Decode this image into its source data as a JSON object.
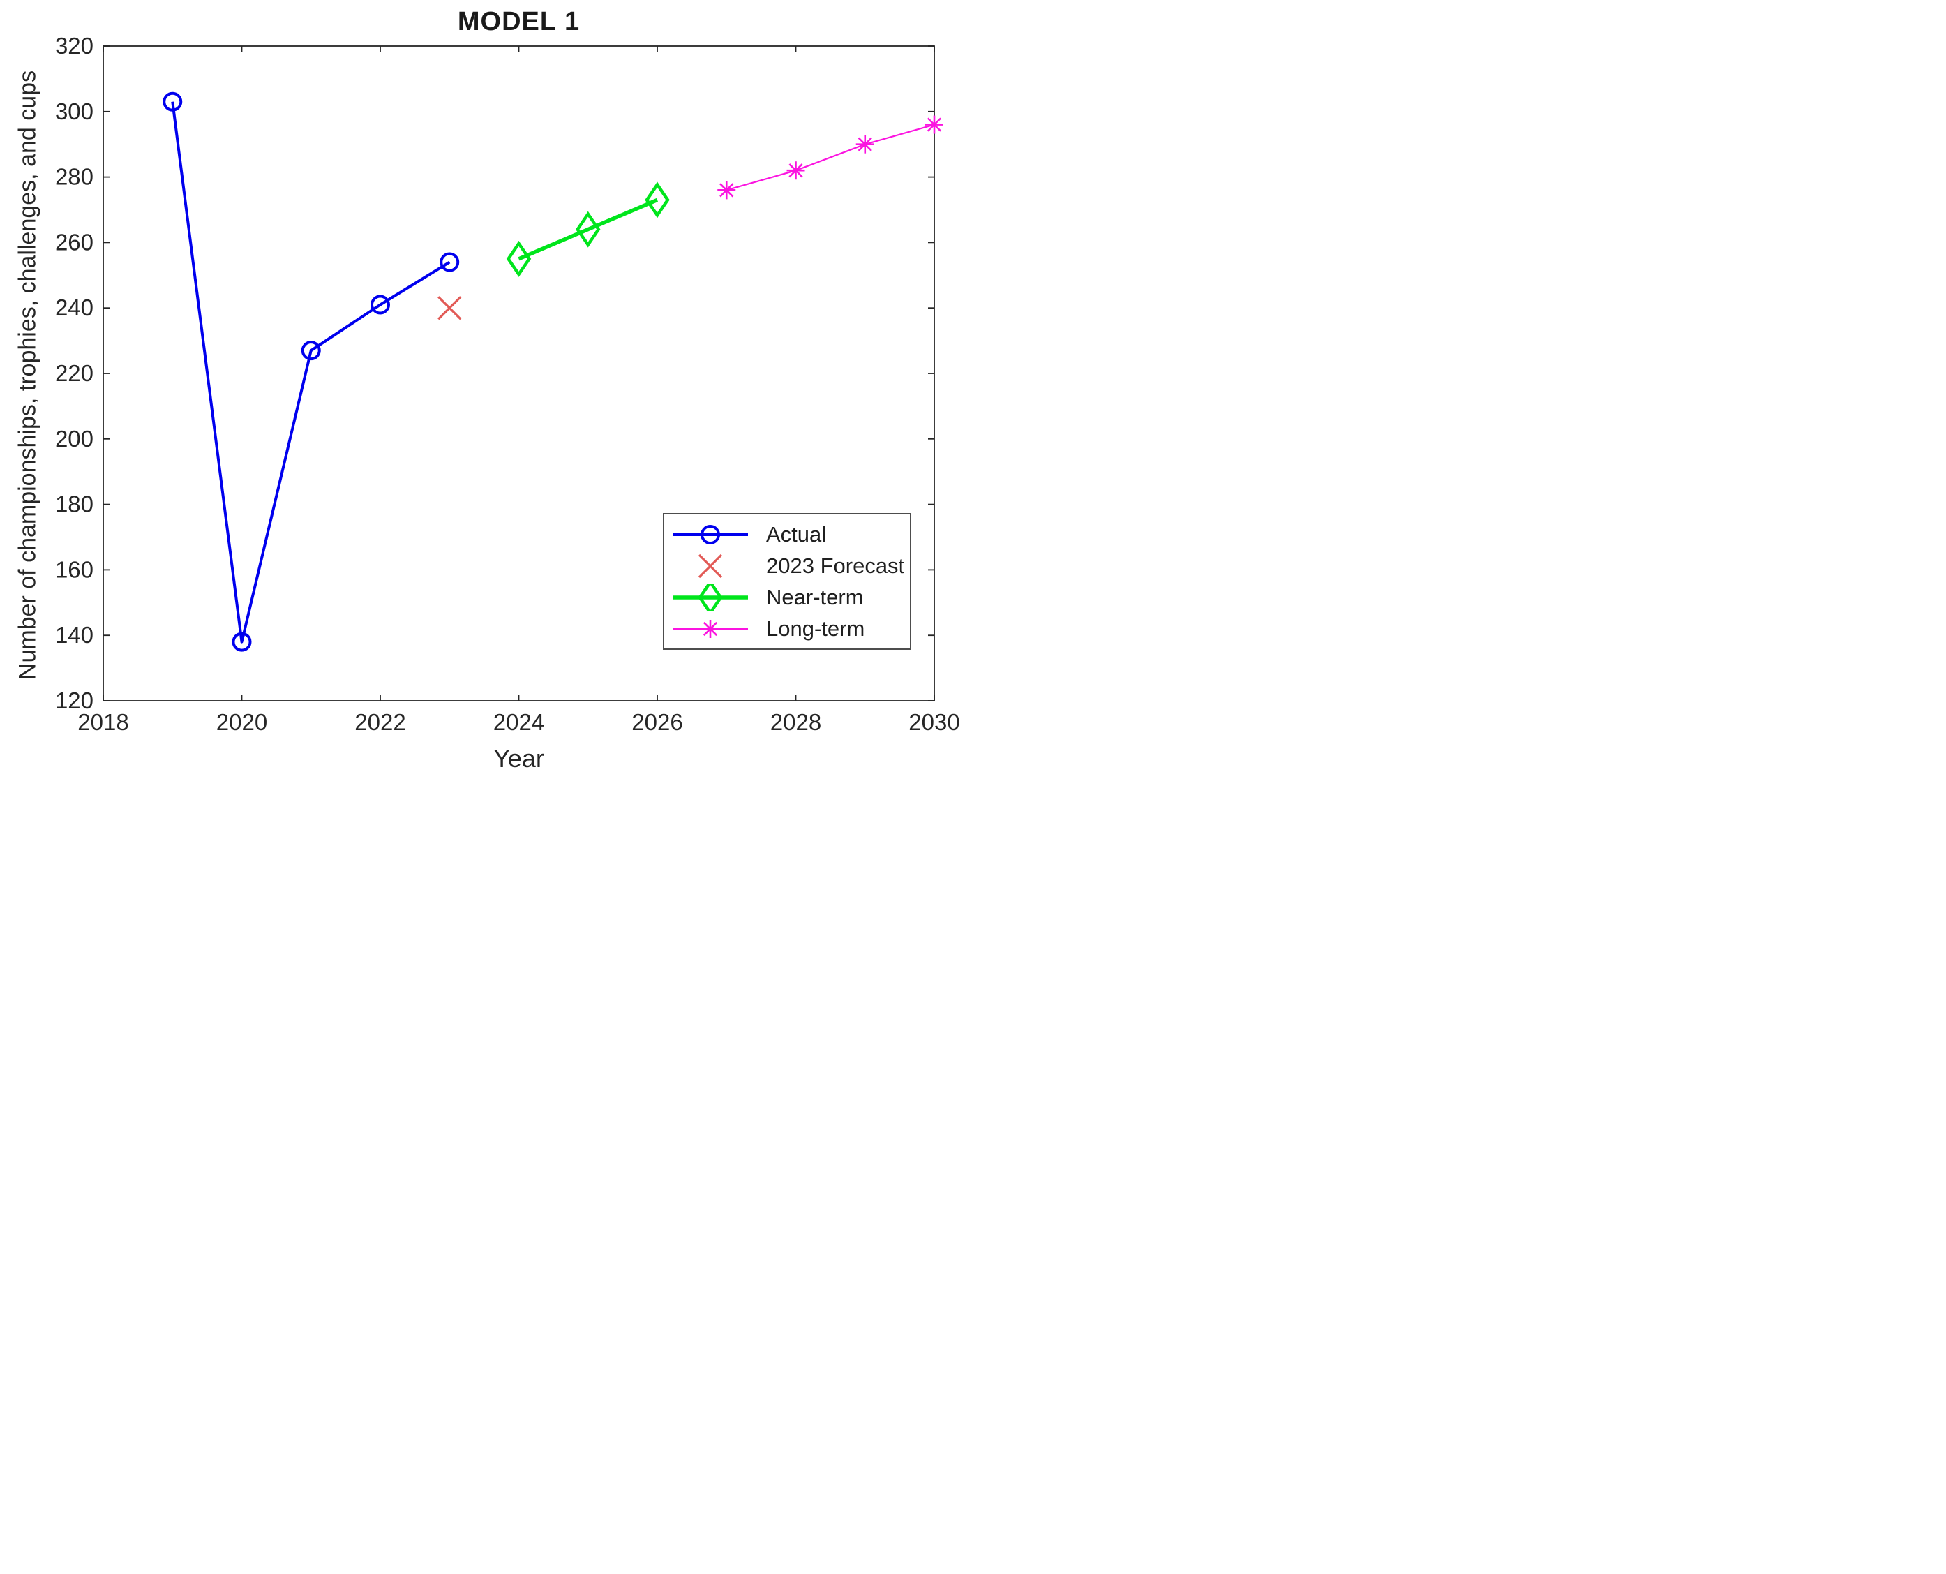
{
  "chart_data": {
    "type": "line",
    "title": "MODEL 1",
    "xlabel": "Year",
    "ylabel": "Number of championships, trophies, challenges, and cups",
    "xlim": [
      2018,
      2030
    ],
    "ylim": [
      120,
      320
    ],
    "xticks": [
      2018,
      2020,
      2022,
      2024,
      2026,
      2028,
      2030
    ],
    "yticks": [
      120,
      140,
      160,
      180,
      200,
      220,
      240,
      260,
      280,
      300,
      320
    ],
    "grid": false,
    "axis_color": "#262626",
    "legend_position": "inside-bottom-right",
    "series": [
      {
        "name": "Actual",
        "color": "#0000ee",
        "marker": "circle",
        "has_line": true,
        "line_width": 4,
        "x": [
          2019,
          2020,
          2021,
          2022,
          2023
        ],
        "y": [
          303,
          138,
          227,
          241,
          254
        ]
      },
      {
        "name": "2023 Forecast",
        "color": "#e25a56",
        "marker": "x",
        "has_line": false,
        "line_width": 3,
        "x": [
          2023
        ],
        "y": [
          240
        ]
      },
      {
        "name": "Near-term",
        "color": "#00e51c",
        "marker": "diamond",
        "has_line": true,
        "line_width": 5.5,
        "x": [
          2024,
          2025,
          2026
        ],
        "y": [
          255,
          264,
          273
        ]
      },
      {
        "name": "Long-term",
        "color": "#fb14e0",
        "marker": "asterisk",
        "has_line": true,
        "line_width": 2.2,
        "x": [
          2027,
          2028,
          2029,
          2030
        ],
        "y": [
          276,
          282,
          290,
          296
        ]
      }
    ]
  }
}
